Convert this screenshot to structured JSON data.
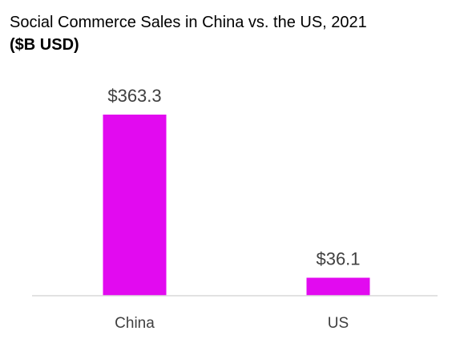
{
  "chart_data": {
    "type": "bar",
    "title": "Social Commerce Sales in China vs. the US, 2021",
    "subtitle": "($B USD)",
    "categories": [
      "China",
      "US"
    ],
    "values": [
      363.3,
      36.1
    ],
    "data_labels": [
      "$363.3",
      "$36.1"
    ],
    "xlabel": "",
    "ylabel": "",
    "ylim": [
      0,
      363.3
    ],
    "grid": false,
    "legend": "none",
    "bar_color": "#E20AF0"
  }
}
